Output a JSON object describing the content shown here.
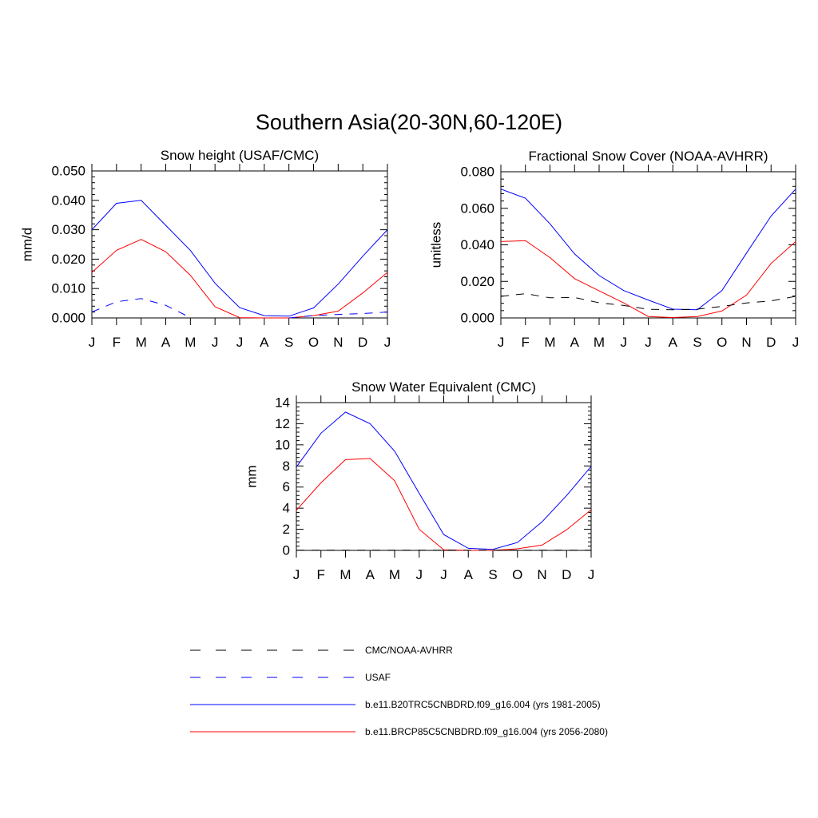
{
  "title": "Southern Asia(20-30N,60-120E)",
  "months": [
    "J",
    "F",
    "M",
    "A",
    "M",
    "J",
    "J",
    "A",
    "S",
    "O",
    "N",
    "D",
    "J"
  ],
  "colors": {
    "obs": "#000000",
    "usaf": "#0000ff",
    "hist": "#0000ff",
    "future": "#ff0000"
  },
  "legend": [
    {
      "key": "obs",
      "label": "CMC/NOAA-AVHRR",
      "color": "#000000",
      "dashed": true
    },
    {
      "key": "usaf",
      "label": "USAF",
      "color": "#0000ff",
      "dashed": true
    },
    {
      "key": "hist",
      "label": "b.e11.B20TRC5CNBDRD.f09_g16.004 (yrs 1981-2005)",
      "color": "#0000ff",
      "dashed": false
    },
    {
      "key": "future",
      "label": "b.e11.BRCP85C5CNBDRD.f09_g16.004 (yrs 2056-2080)",
      "color": "#ff0000",
      "dashed": false
    }
  ],
  "chart_data": [
    {
      "type": "line",
      "title": "Snow height (USAF/CMC)",
      "ylabel": "mm/d",
      "ylim": [
        0,
        0.05
      ],
      "yticks": [
        0,
        0.01,
        0.02,
        0.03,
        0.04,
        0.05
      ],
      "ytick_labels": [
        "0.000",
        "0.010",
        "0.020",
        "0.030",
        "0.040",
        "0.050"
      ],
      "categories": [
        "J",
        "F",
        "M",
        "A",
        "M",
        "J",
        "J",
        "A",
        "S",
        "O",
        "N",
        "D",
        "J"
      ],
      "series": [
        {
          "key": "hist",
          "values": [
            0.03,
            0.039,
            0.04,
            0.0315,
            0.023,
            0.0118,
            0.0035,
            0.0008,
            0.0006,
            0.0034,
            0.0115,
            0.021,
            0.03
          ]
        },
        {
          "key": "future",
          "values": [
            0.0155,
            0.023,
            0.0267,
            0.0225,
            0.0145,
            0.0038,
            0.0001,
            0.0,
            0.0,
            0.0008,
            0.0023,
            0.0085,
            0.0155
          ]
        },
        {
          "key": "usaf",
          "values": [
            0.002,
            0.0055,
            0.0066,
            0.0043,
            0.0001,
            null,
            null,
            null,
            0.0,
            0.0008,
            0.0012,
            0.0015,
            0.002
          ]
        }
      ]
    },
    {
      "type": "line",
      "title": "Fractional Snow Cover (NOAA-AVHRR)",
      "ylabel": "unitless",
      "ylim": [
        0,
        0.08
      ],
      "yticks": [
        0,
        0.02,
        0.04,
        0.06,
        0.08
      ],
      "ytick_labels": [
        "0.000",
        "0.020",
        "0.040",
        "0.060",
        "0.080"
      ],
      "categories": [
        "J",
        "F",
        "M",
        "A",
        "M",
        "J",
        "J",
        "A",
        "S",
        "O",
        "N",
        "D",
        "J"
      ],
      "series": [
        {
          "key": "hist",
          "values": [
            0.0705,
            0.0655,
            0.0515,
            0.035,
            0.0232,
            0.015,
            0.0098,
            0.0048,
            0.0045,
            0.015,
            0.0355,
            0.0558,
            0.0705
          ]
        },
        {
          "key": "future",
          "values": [
            0.0418,
            0.0423,
            0.033,
            0.0215,
            0.0148,
            0.0082,
            0.0008,
            0.0002,
            0.0008,
            0.0038,
            0.0125,
            0.0298,
            0.0418
          ]
        },
        {
          "key": "obs",
          "values": [
            0.0118,
            0.0133,
            0.011,
            0.0112,
            0.0083,
            0.0068,
            0.0047,
            0.0045,
            0.0048,
            0.0063,
            0.0082,
            0.0093,
            0.0118
          ]
        }
      ]
    },
    {
      "type": "line",
      "title": "Snow Water Equivalent (CMC)",
      "ylabel": "mm",
      "ylim": [
        0,
        14
      ],
      "yticks": [
        0,
        2,
        4,
        6,
        8,
        10,
        12,
        14
      ],
      "ytick_labels": [
        "0",
        "2",
        "4",
        "6",
        "8",
        "10",
        "12",
        "14"
      ],
      "categories": [
        "J",
        "F",
        "M",
        "A",
        "M",
        "J",
        "J",
        "A",
        "S",
        "O",
        "N",
        "D",
        "J"
      ],
      "series": [
        {
          "key": "hist",
          "values": [
            7.9,
            11.1,
            13.1,
            12.0,
            9.4,
            5.4,
            1.5,
            0.2,
            0.1,
            0.75,
            2.7,
            5.2,
            7.95
          ]
        },
        {
          "key": "future",
          "values": [
            3.8,
            6.4,
            8.6,
            8.7,
            6.6,
            2.0,
            0.05,
            0.0,
            0.0,
            0.15,
            0.5,
            1.95,
            3.85
          ]
        },
        {
          "key": "obs",
          "values": [
            0.02,
            0.02,
            0.02,
            0.02,
            0.02,
            0.02,
            0.02,
            0.02,
            0.02,
            0.02,
            0.02,
            0.02,
            0.02
          ]
        }
      ]
    }
  ]
}
